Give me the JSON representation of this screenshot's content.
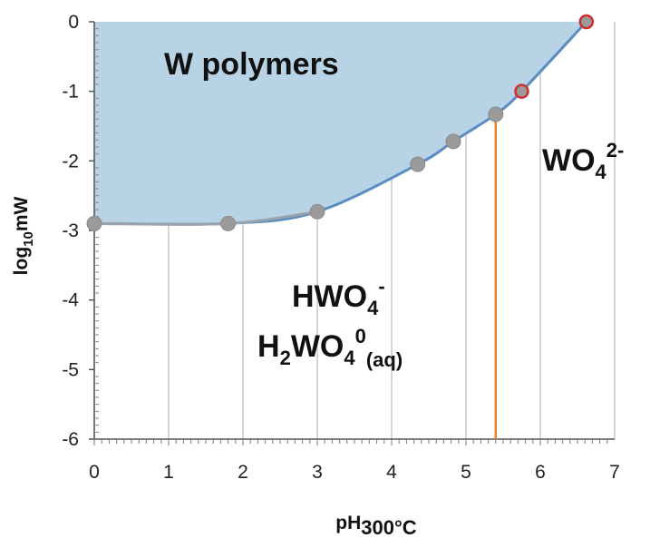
{
  "chart_data": {
    "type": "line",
    "title": "",
    "xlabel": {
      "main": "pH",
      "sub": "300°C"
    },
    "ylabel": {
      "pre": "log",
      "sub": "10",
      "post": "mW"
    },
    "xlim": [
      0,
      7
    ],
    "ylim": [
      -6,
      0
    ],
    "xticks": [
      "0",
      "1",
      "2",
      "3",
      "4",
      "5",
      "6",
      "7"
    ],
    "yticks": [
      "0",
      "-1",
      "-2",
      "-3",
      "-4",
      "-5",
      "-6"
    ],
    "grid": "vertical",
    "boundary": {
      "x": [
        0,
        1.8,
        3.0,
        4.35,
        4.83,
        5.4,
        5.75,
        6.62
      ],
      "y": [
        -2.9,
        -2.9,
        -2.73,
        -2.05,
        -1.72,
        -1.33,
        -1.0,
        0
      ],
      "point_style": [
        "gray",
        "gray",
        "gray",
        "gray",
        "gray",
        "gray",
        "red",
        "red"
      ]
    },
    "vertical_boundary": {
      "x": 5.4,
      "y_from": -1.33,
      "y_to": -6
    },
    "regions": {
      "polymers": "W polymers",
      "tungstate": {
        "base": "WO",
        "sub": "4",
        "sup": "2-"
      },
      "hwo4": {
        "base": "HWO",
        "sub": "4",
        "sup": "-"
      },
      "h2wo4": {
        "a": "H",
        "a_sub": "2",
        "b": "WO",
        "b_sub": "4",
        "sup": "0",
        "tail_sub": "(aq)"
      }
    },
    "colors": {
      "fill": "#b7d3e5",
      "curve": "#5b8dc0",
      "curve_low": "#9aa3ad",
      "vertical": "#e8802c",
      "gray_point": "#9a9a9a",
      "red_point_edge": "#d22d2d",
      "grid": "#c8c8c8"
    }
  }
}
